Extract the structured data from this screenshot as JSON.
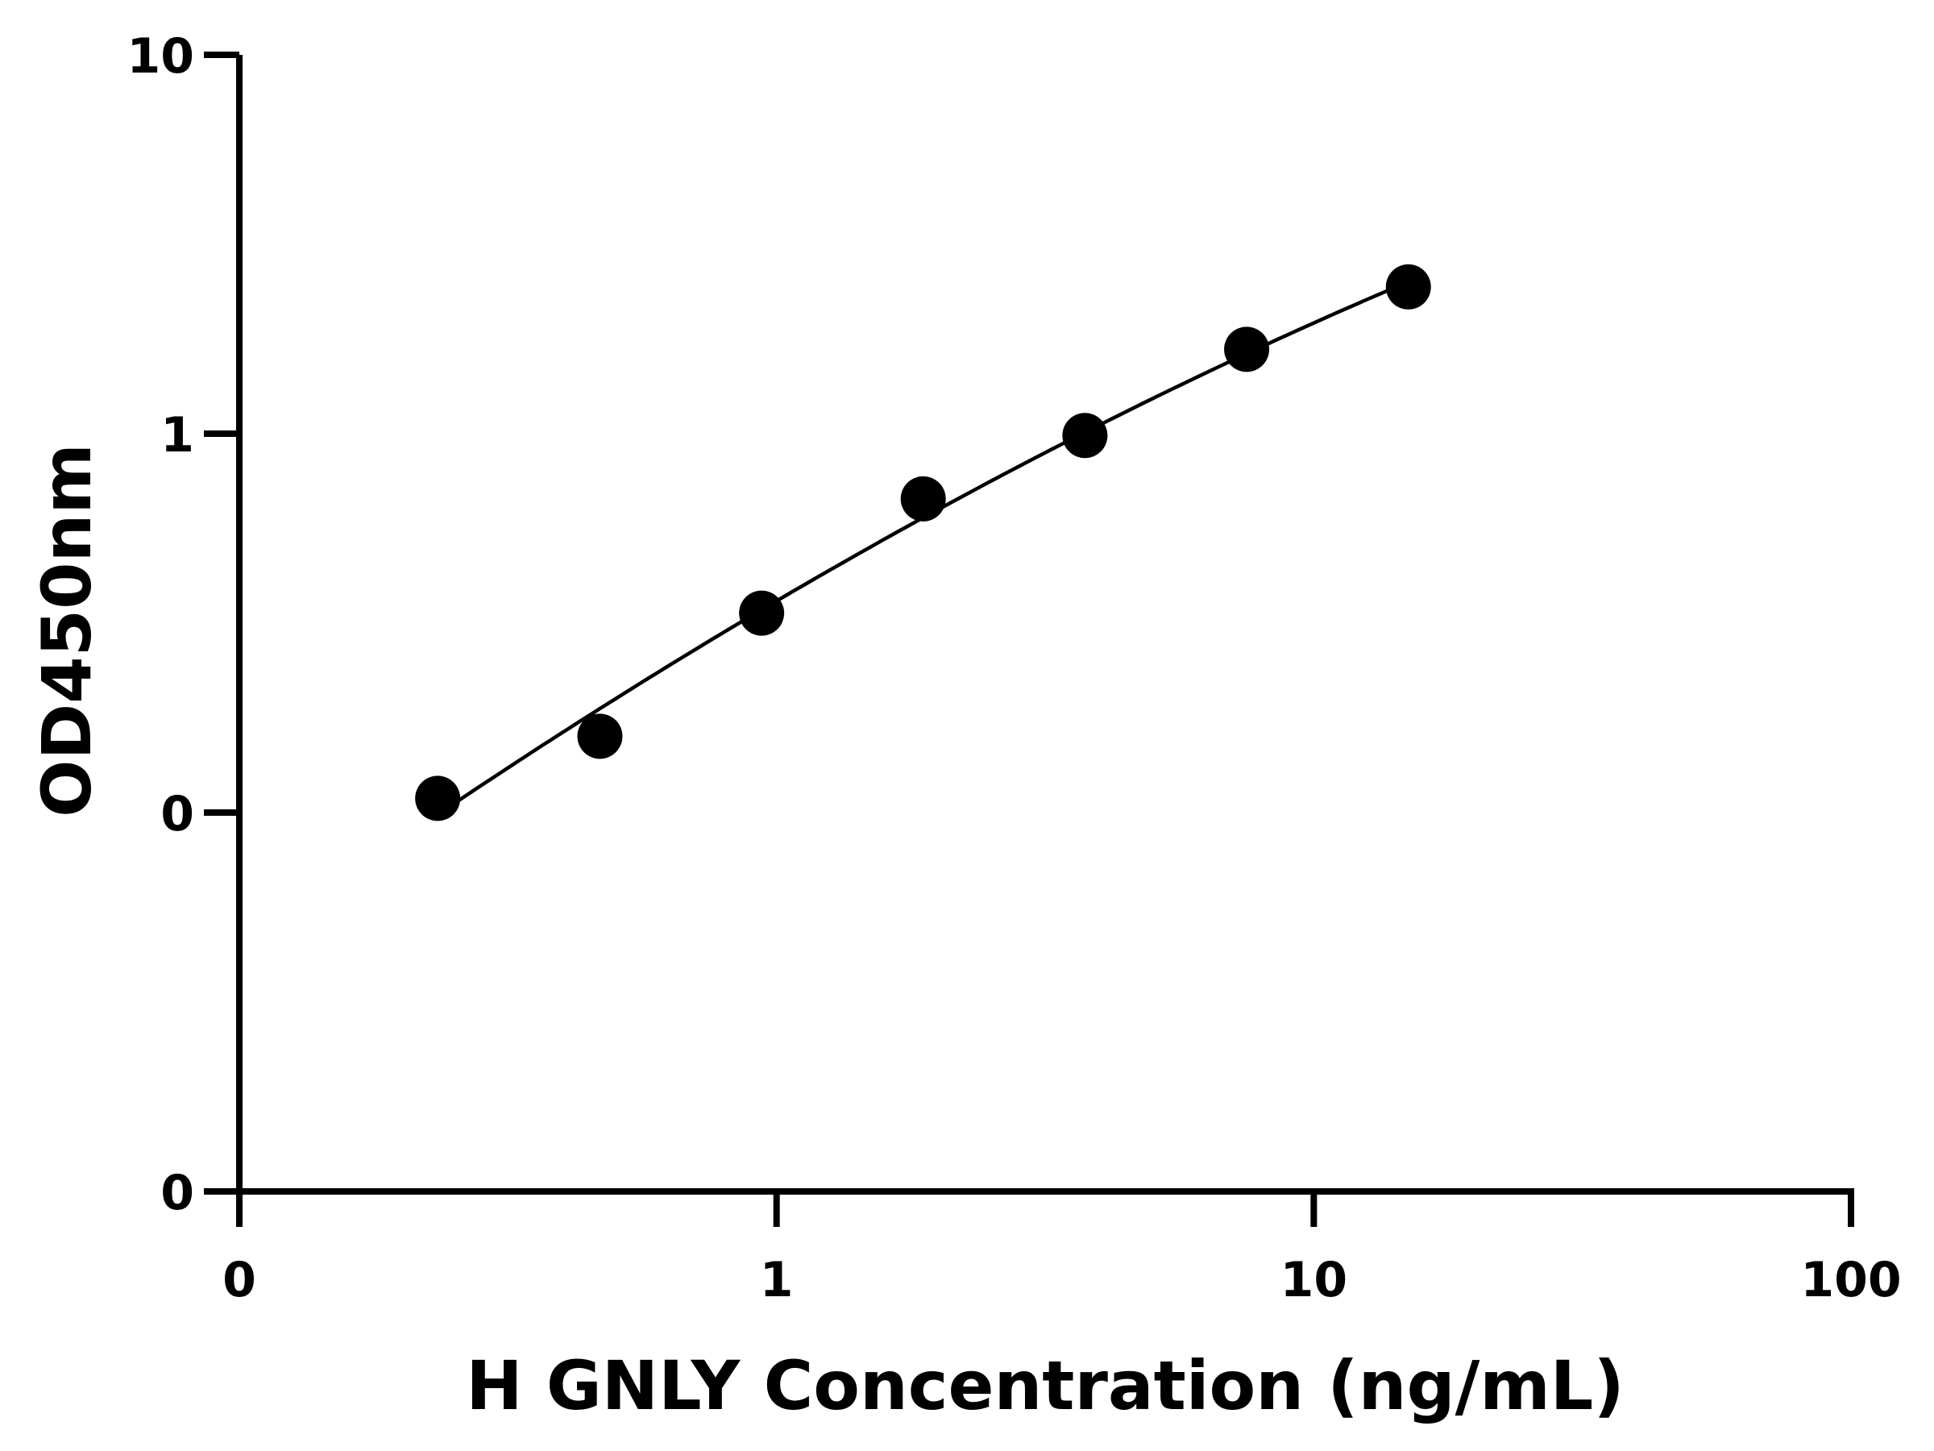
{
  "chart_data": {
    "type": "scatter",
    "xlabel": "H GNLY Concentration (ng/mL)",
    "ylabel": "OD450nm",
    "x_scale": "log",
    "y_scale": "log",
    "xlim": [
      0.1,
      100
    ],
    "ylim": [
      0.01,
      10
    ],
    "x_ticks": [
      {
        "value": 0.1,
        "label": "0"
      },
      {
        "value": 1,
        "label": "1"
      },
      {
        "value": 10,
        "label": "10"
      },
      {
        "value": 100,
        "label": "100"
      }
    ],
    "y_ticks": [
      {
        "value": 0.01,
        "label": "0"
      },
      {
        "value": 0.1,
        "label": "0"
      },
      {
        "value": 1,
        "label": "1"
      },
      {
        "value": 10,
        "label": "10"
      }
    ],
    "points": [
      {
        "x": 0.234,
        "y": 0.109
      },
      {
        "x": 0.469,
        "y": 0.159
      },
      {
        "x": 0.938,
        "y": 0.336
      },
      {
        "x": 1.875,
        "y": 0.673
      },
      {
        "x": 3.75,
        "y": 0.989
      },
      {
        "x": 7.5,
        "y": 1.67
      },
      {
        "x": 15,
        "y": 2.44
      }
    ],
    "fit_curve": {
      "type": "4PL",
      "visible": true
    },
    "grid": false,
    "legend": "none",
    "colors": {
      "marker": "#000000",
      "line": "#000000",
      "axis": "#000000"
    }
  }
}
